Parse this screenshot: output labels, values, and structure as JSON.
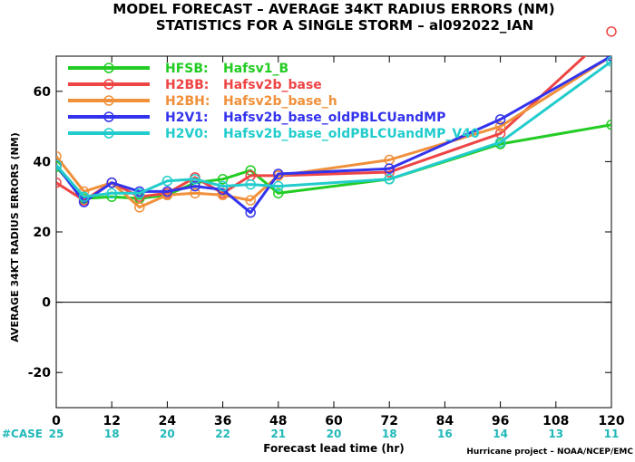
{
  "chart_data": {
    "type": "line",
    "title": "MODEL FORECAST – AVERAGE 34KT RADIUS ERRORS (NM)",
    "subtitle": "STATISTICS FOR A SINGLE STORM – al092022_IAN",
    "xlabel": "Forecast lead time (hr)",
    "ylabel": "AVERAGE 34KT RADIUS ERRORS (NM)",
    "footer": "Hurricane project – NOAA/NCEP/EMC",
    "xlim": [
      0,
      120
    ],
    "ylim": [
      -30,
      70
    ],
    "xticks": [
      0,
      12,
      24,
      36,
      48,
      60,
      72,
      84,
      96,
      108,
      120
    ],
    "yticks": [
      -20,
      0,
      20,
      40,
      60
    ],
    "grid": false,
    "legend_position": "top-left",
    "cases_label": "#CASE",
    "cases": [
      {
        "x": 0,
        "n": "25"
      },
      {
        "x": 12,
        "n": "18"
      },
      {
        "x": 24,
        "n": "20"
      },
      {
        "x": 36,
        "n": "22"
      },
      {
        "x": 48,
        "n": "21"
      },
      {
        "x": 60,
        "n": "20"
      },
      {
        "x": 72,
        "n": "18"
      },
      {
        "x": 84,
        "n": "16"
      },
      {
        "x": 96,
        "n": "14"
      },
      {
        "x": 108,
        "n": "13"
      },
      {
        "x": 120,
        "n": "11"
      }
    ],
    "series": [
      {
        "name": "HFSB: Hafsv1_B",
        "code": "HFSB:",
        "desc": "Hafsv1_B",
        "color": "#22cc22",
        "points": [
          [
            0,
            38.5
          ],
          [
            6,
            29.5
          ],
          [
            12,
            30
          ],
          [
            18,
            29.5
          ],
          [
            24,
            30.5
          ],
          [
            30,
            34
          ],
          [
            36,
            35
          ],
          [
            42,
            37.5
          ],
          [
            48,
            31
          ],
          [
            72,
            35
          ],
          [
            96,
            45
          ],
          [
            120,
            50.5
          ]
        ]
      },
      {
        "name": "H2BB: Hafsv2b_base",
        "code": "H2BB:",
        "desc": "Hafsv2b_base",
        "color": "#ee4444",
        "points": [
          [
            0,
            34
          ],
          [
            6,
            29
          ],
          [
            12,
            34
          ],
          [
            18,
            30
          ],
          [
            24,
            31
          ],
          [
            30,
            35.5
          ],
          [
            36,
            31
          ],
          [
            42,
            36
          ],
          [
            48,
            36
          ],
          [
            72,
            37
          ],
          [
            96,
            48
          ],
          [
            120,
            77
          ]
        ]
      },
      {
        "name": "H2BH: Hafsv2b_base_h",
        "code": "H2BH:",
        "desc": "Hafsv2b_base_h",
        "color": "#f0903a",
        "points": [
          [
            0,
            41.5
          ],
          [
            6,
            31.5
          ],
          [
            12,
            34
          ],
          [
            18,
            27
          ],
          [
            24,
            30.5
          ],
          [
            30,
            31
          ],
          [
            36,
            30.5
          ],
          [
            42,
            29
          ],
          [
            48,
            36
          ],
          [
            72,
            40.5
          ],
          [
            96,
            50
          ],
          [
            120,
            70
          ]
        ]
      },
      {
        "name": "H2V1: Hafsv2b_base_oldPBLCUandMP",
        "code": "H2V1:",
        "desc": "Hafsv2b_base_oldPBLCUandMP",
        "color": "#3333ee",
        "points": [
          [
            0,
            39
          ],
          [
            6,
            28.5
          ],
          [
            12,
            34
          ],
          [
            18,
            31.5
          ],
          [
            24,
            31.5
          ],
          [
            30,
            33
          ],
          [
            36,
            32
          ],
          [
            42,
            25.5
          ],
          [
            48,
            36.5
          ],
          [
            72,
            38
          ],
          [
            96,
            52
          ],
          [
            120,
            70
          ]
        ]
      },
      {
        "name": "H2V0: Hafsv2b_base_oldPBLCUandMP_V40",
        "code": "H2V0:",
        "desc": "Hafsv2b_base_oldPBLCUandMP_V40",
        "color": "#22cccc",
        "points": [
          [
            0,
            39
          ],
          [
            6,
            30
          ],
          [
            12,
            31
          ],
          [
            18,
            31
          ],
          [
            24,
            34.5
          ],
          [
            30,
            35
          ],
          [
            36,
            33
          ],
          [
            42,
            33.5
          ],
          [
            48,
            33
          ],
          [
            72,
            35
          ],
          [
            96,
            45.5
          ],
          [
            120,
            68.5
          ]
        ]
      }
    ]
  }
}
